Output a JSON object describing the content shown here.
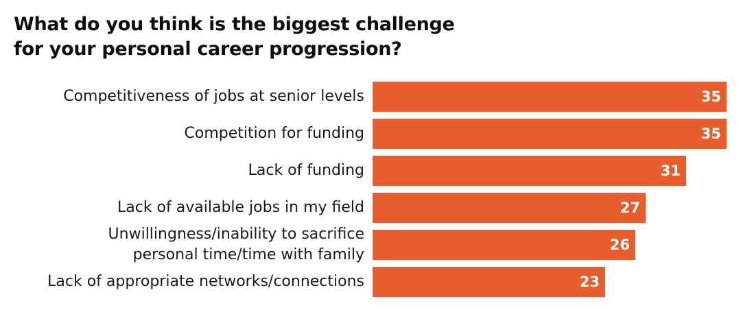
{
  "title_lines": [
    "What do you think is the biggest challenge",
    "for your personal career progression?"
  ],
  "colors": {
    "bar": "#e85d2e",
    "value_text": "#ffffff",
    "title_text": "#0d0d0d"
  },
  "chart_data": {
    "type": "bar",
    "orientation": "horizontal",
    "title": "What do you think is the biggest challenge for your personal career progression?",
    "categories": [
      [
        "Competitiveness of jobs at senior levels"
      ],
      [
        "Competition for funding"
      ],
      [
        "Lack of funding"
      ],
      [
        "Lack of available jobs in my field"
      ],
      [
        "Unwillingness/inability to sacrifice",
        "personal time/time with family"
      ],
      [
        "Lack of appropriate networks/connections"
      ]
    ],
    "values": [
      35,
      35,
      31,
      27,
      26,
      23
    ],
    "xlim": [
      0,
      35
    ],
    "grid": false,
    "legend": "none"
  }
}
